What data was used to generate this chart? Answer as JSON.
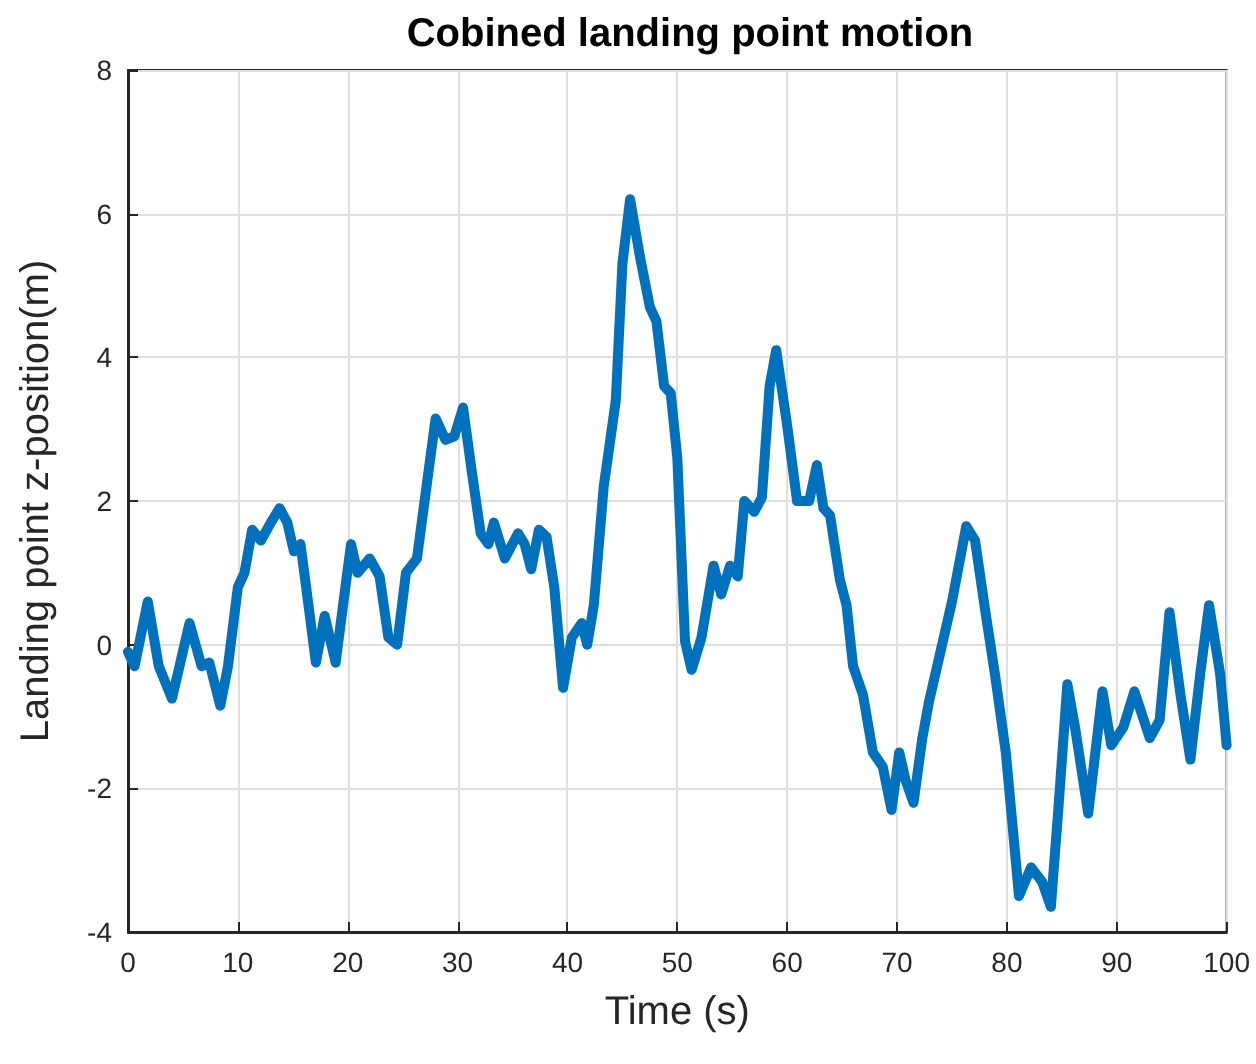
{
  "chart_data": {
    "type": "line",
    "title": "Cobined landing point motion",
    "xlabel": "Time (s)",
    "ylabel": "Landing point z-position(m)",
    "x": [
      0,
      0.6,
      1.8,
      2.8,
      4.0,
      5.6,
      6.7,
      7.4,
      8.4,
      9.1,
      10.0,
      10.6,
      11.3,
      12.1,
      13.0,
      13.8,
      14.5,
      15.1,
      15.7,
      16.3,
      17.1,
      17.9,
      18.9,
      19.7,
      20.3,
      20.9,
      22.0,
      22.9,
      23.7,
      24.5,
      25.3,
      26.3,
      27.3,
      28.0,
      28.9,
      29.7,
      30.5,
      31.3,
      32.1,
      32.8,
      33.3,
      34.3,
      35.5,
      36.1,
      36.7,
      37.4,
      38.1,
      38.8,
      39.6,
      40.4,
      41.3,
      41.8,
      42.4,
      43.3,
      44.4,
      45.0,
      45.7,
      46.6,
      47.5,
      48.1,
      48.8,
      49.4,
      50.0,
      50.7,
      51.3,
      52.2,
      53.3,
      54.0,
      54.8,
      55.5,
      56.1,
      57.0,
      57.7,
      58.4,
      59.0,
      60.0,
      60.9,
      62.0,
      62.7,
      63.3,
      63.9,
      64.8,
      65.4,
      66.0,
      66.9,
      67.8,
      68.7,
      69.5,
      70.2,
      70.8,
      71.5,
      72.3,
      72.9,
      73.5,
      75.0,
      76.3,
      77.1,
      78.0,
      78.9,
      79.9,
      80.5,
      81.1,
      82.2,
      83.2,
      84.0,
      84.7,
      85.5,
      86.2,
      87.4,
      88.7,
      89.5,
      90.6,
      91.6,
      93.0,
      93.9,
      94.8,
      95.8,
      96.7,
      97.6,
      98.4,
      99.4,
      100
    ],
    "series": [
      {
        "color": "#0072bd",
        "values": [
          -0.1,
          -0.3,
          0.6,
          -0.3,
          -0.75,
          0.3,
          -0.3,
          -0.25,
          -0.85,
          -0.3,
          0.8,
          1.0,
          1.6,
          1.45,
          1.7,
          1.9,
          1.7,
          1.3,
          1.4,
          0.7,
          -0.25,
          0.4,
          -0.25,
          0.7,
          1.4,
          1.0,
          1.2,
          0.95,
          0.1,
          0.0,
          1.0,
          1.2,
          2.35,
          3.15,
          2.85,
          2.9,
          3.3,
          2.4,
          1.55,
          1.4,
          1.7,
          1.2,
          1.55,
          1.4,
          1.05,
          1.6,
          1.5,
          0.8,
          -0.6,
          0.1,
          0.3,
          0.0,
          0.55,
          2.2,
          3.4,
          5.3,
          6.2,
          5.4,
          4.7,
          4.5,
          3.6,
          3.5,
          2.6,
          0.05,
          -0.35,
          0.1,
          1.1,
          0.7,
          1.1,
          0.95,
          2.0,
          1.85,
          2.05,
          3.6,
          4.1,
          3.05,
          2.0,
          2.0,
          2.5,
          1.9,
          1.8,
          0.9,
          0.55,
          -0.3,
          -0.7,
          -1.5,
          -1.7,
          -2.3,
          -1.5,
          -1.9,
          -2.2,
          -1.3,
          -0.8,
          -0.4,
          0.6,
          1.65,
          1.45,
          0.5,
          -0.4,
          -1.5,
          -2.5,
          -3.5,
          -3.1,
          -3.3,
          -3.65,
          -2.25,
          -0.55,
          -1.15,
          -2.35,
          -0.65,
          -1.4,
          -1.15,
          -0.65,
          -1.3,
          -1.05,
          0.45,
          -0.7,
          -1.6,
          -0.4,
          0.55,
          -0.4,
          -1.4
        ]
      }
    ],
    "xlim": [
      0,
      100
    ],
    "xticks": [
      0,
      10,
      20,
      30,
      40,
      50,
      60,
      70,
      80,
      90,
      100
    ],
    "ylim": [
      -4,
      8
    ],
    "yticks": [
      -4,
      -2,
      0,
      2,
      4,
      6,
      8
    ],
    "grid": true,
    "marker": "none",
    "line_style": "solid"
  }
}
